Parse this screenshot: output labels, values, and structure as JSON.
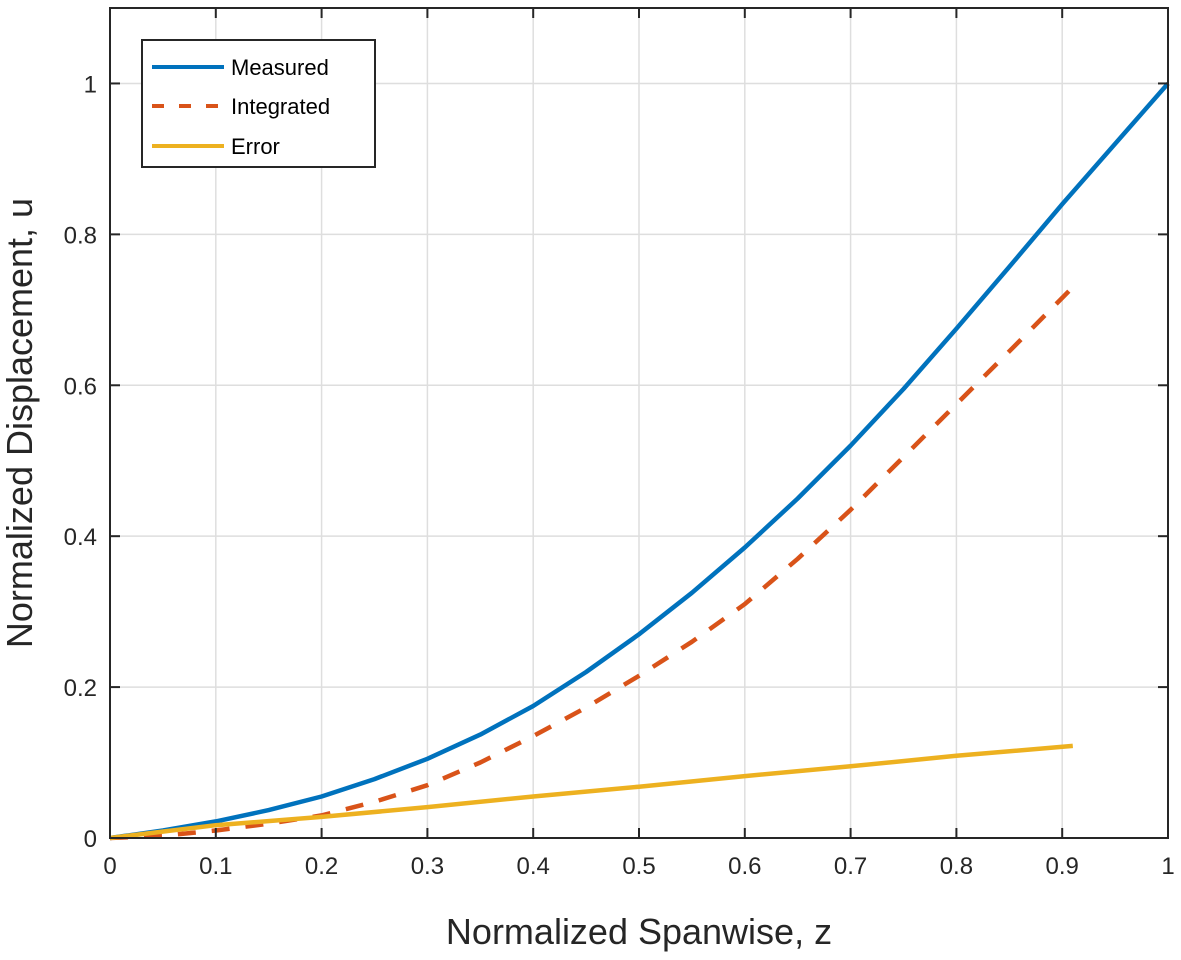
{
  "chart_data": {
    "type": "line",
    "title": "",
    "xlabel": "Normalized Spanwise, z",
    "ylabel": "Normalized Displacement, u",
    "xlim": [
      0,
      1
    ],
    "ylim": [
      0,
      1.1
    ],
    "grid": true,
    "legend_position": "top-left",
    "x_ticks": [
      0,
      0.1,
      0.2,
      0.3,
      0.4,
      0.5,
      0.6,
      0.7,
      0.8,
      0.9,
      1
    ],
    "x_tick_labels": [
      "0",
      "0.1",
      "0.2",
      "0.3",
      "0.4",
      "0.5",
      "0.6",
      "0.7",
      "0.8",
      "0.9",
      "1"
    ],
    "y_ticks": [
      0,
      0.2,
      0.4,
      0.6,
      0.8,
      1
    ],
    "y_tick_labels": [
      "0",
      "0.2",
      "0.4",
      "0.6",
      "0.8",
      "1"
    ],
    "series": [
      {
        "name": "Measured",
        "color": "#0072BD",
        "style": "solid",
        "x": [
          0,
          0.05,
          0.1,
          0.15,
          0.2,
          0.25,
          0.3,
          0.35,
          0.4,
          0.45,
          0.5,
          0.55,
          0.6,
          0.65,
          0.7,
          0.75,
          0.8,
          0.85,
          0.9,
          0.95,
          1.0
        ],
        "y": [
          0,
          0.01,
          0.022,
          0.037,
          0.055,
          0.078,
          0.105,
          0.137,
          0.175,
          0.22,
          0.27,
          0.325,
          0.385,
          0.45,
          0.52,
          0.595,
          0.675,
          0.757,
          0.84,
          0.92,
          1.0
        ]
      },
      {
        "name": "Integrated",
        "color": "#D95319",
        "style": "dashed",
        "x": [
          0,
          0.05,
          0.1,
          0.15,
          0.2,
          0.25,
          0.3,
          0.35,
          0.4,
          0.45,
          0.5,
          0.55,
          0.6,
          0.65,
          0.7,
          0.75,
          0.8,
          0.85,
          0.91
        ],
        "y": [
          0,
          0.003,
          0.01,
          0.019,
          0.03,
          0.048,
          0.07,
          0.1,
          0.135,
          0.173,
          0.215,
          0.26,
          0.31,
          0.37,
          0.435,
          0.505,
          0.575,
          0.645,
          0.73
        ]
      },
      {
        "name": "Error",
        "color": "#EDB120",
        "style": "solid",
        "x": [
          0,
          0.1,
          0.2,
          0.3,
          0.4,
          0.5,
          0.6,
          0.7,
          0.8,
          0.91
        ],
        "y": [
          0,
          0.017,
          0.028,
          0.041,
          0.055,
          0.068,
          0.082,
          0.095,
          0.109,
          0.122
        ]
      }
    ]
  }
}
